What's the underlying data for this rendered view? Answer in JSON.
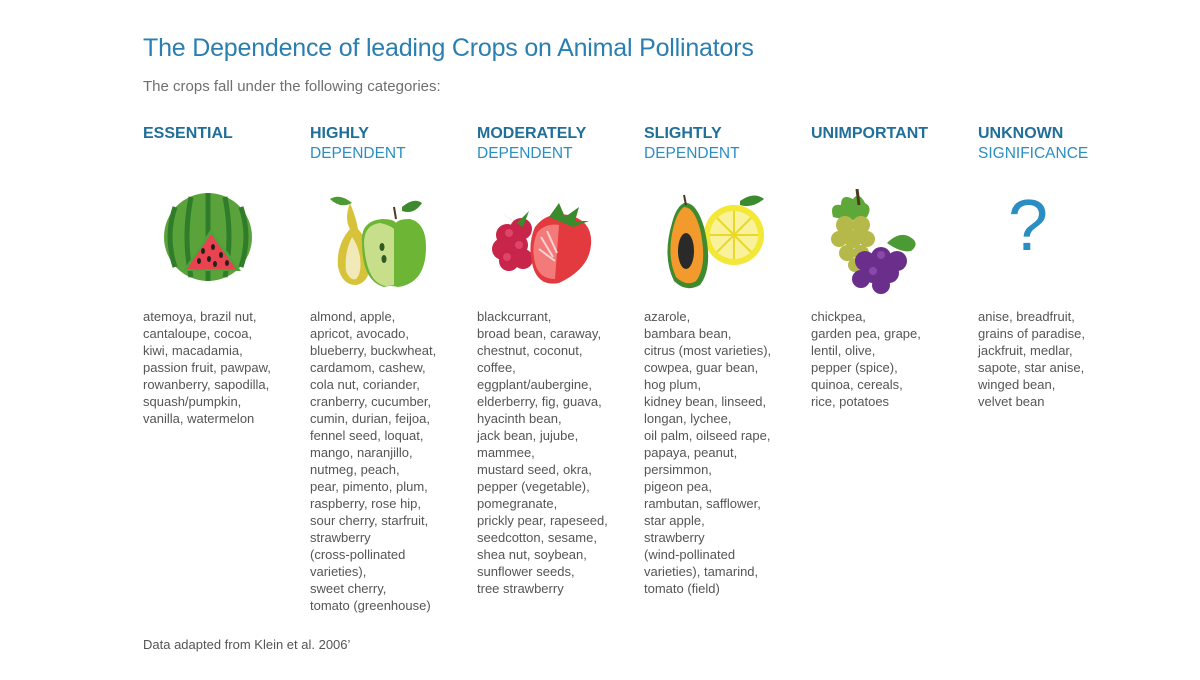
{
  "title": "The Dependence of leading Crops on Animal Pollinators",
  "subtitle": "The crops fall under the following categories:",
  "categories": [
    {
      "line1": "ESSENTIAL",
      "line2": "",
      "icon": "watermelon-icon",
      "crops": "atemoya, brazil nut,\ncantaloupe, cocoa,\nkiwi, macadamia,\npassion fruit, pawpaw,\nrowanberry, sapodilla,\nsquash/pumpkin,\nvanilla, watermelon"
    },
    {
      "line1": "HIGHLY",
      "line2": "DEPENDENT",
      "icon": "pear-apple-icon",
      "crops": "almond, apple,\napricot, avocado,\nblueberry, buckwheat,\ncardamom, cashew,\ncola nut, coriander,\ncranberry, cucumber,\ncumin, durian, feijoa,\nfennel seed, loquat,\nmango, naranjillo,\nnutmeg, peach,\npear, pimento, plum,\nraspberry, rose hip,\nsour cherry, starfruit,\nstrawberry\n(cross-pollinated\nvarieties),\nsweet cherry,\ntomato (greenhouse)"
    },
    {
      "line1": "MODERATELY",
      "line2": "DEPENDENT",
      "icon": "raspberry-strawberry-icon",
      "crops": "blackcurrant,\nbroad bean, caraway,\nchestnut, coconut,\ncoffee,\neggplant/aubergine,\nelderberry, fig, guava,\nhyacinth bean,\njack bean, jujube,\nmammee,\nmustard seed, okra,\npepper (vegetable),\npomegranate,\nprickly pear, rapeseed,\nseedcotton, sesame,\nshea nut, soybean,\nsunflower seeds,\ntree strawberry"
    },
    {
      "line1": "SLIGHTLY",
      "line2": "DEPENDENT",
      "icon": "papaya-lemon-icon",
      "crops": "azarole,\nbambara bean,\ncitrus (most varieties),\ncowpea, guar bean,\nhog plum,\nkidney bean, linseed,\nlongan, lychee,\noil palm, oilseed rape,\npapaya, peanut,\npersimmon,\npigeon pea,\nrambutan, safflower,\nstar apple,\nstrawberry\n(wind-pollinated\nvarieties), tamarind,\ntomato (field)"
    },
    {
      "line1": "UNIMPORTANT",
      "line2": "",
      "icon": "grapes-icon",
      "crops": "chickpea,\ngarden pea, grape,\nlentil, olive,\npepper (spice),\nquinoa, cereals,\nrice, potatoes"
    },
    {
      "line1": "UNKNOWN",
      "line2": "SIGNIFICANCE",
      "icon": "question-mark-icon",
      "glyph": "?",
      "crops": "anise, breadfruit,\ngrains of paradise,\njackfruit, medlar,\nsapote, star anise,\nwinged bean,\nvelvet bean"
    }
  ],
  "footnote": "Data adapted from Klein et al. 2006’",
  "colors": {
    "title": "#2a7fb0",
    "heading": "#1f6f9a",
    "subheading": "#2a8ec4",
    "body_text": "#555555"
  }
}
